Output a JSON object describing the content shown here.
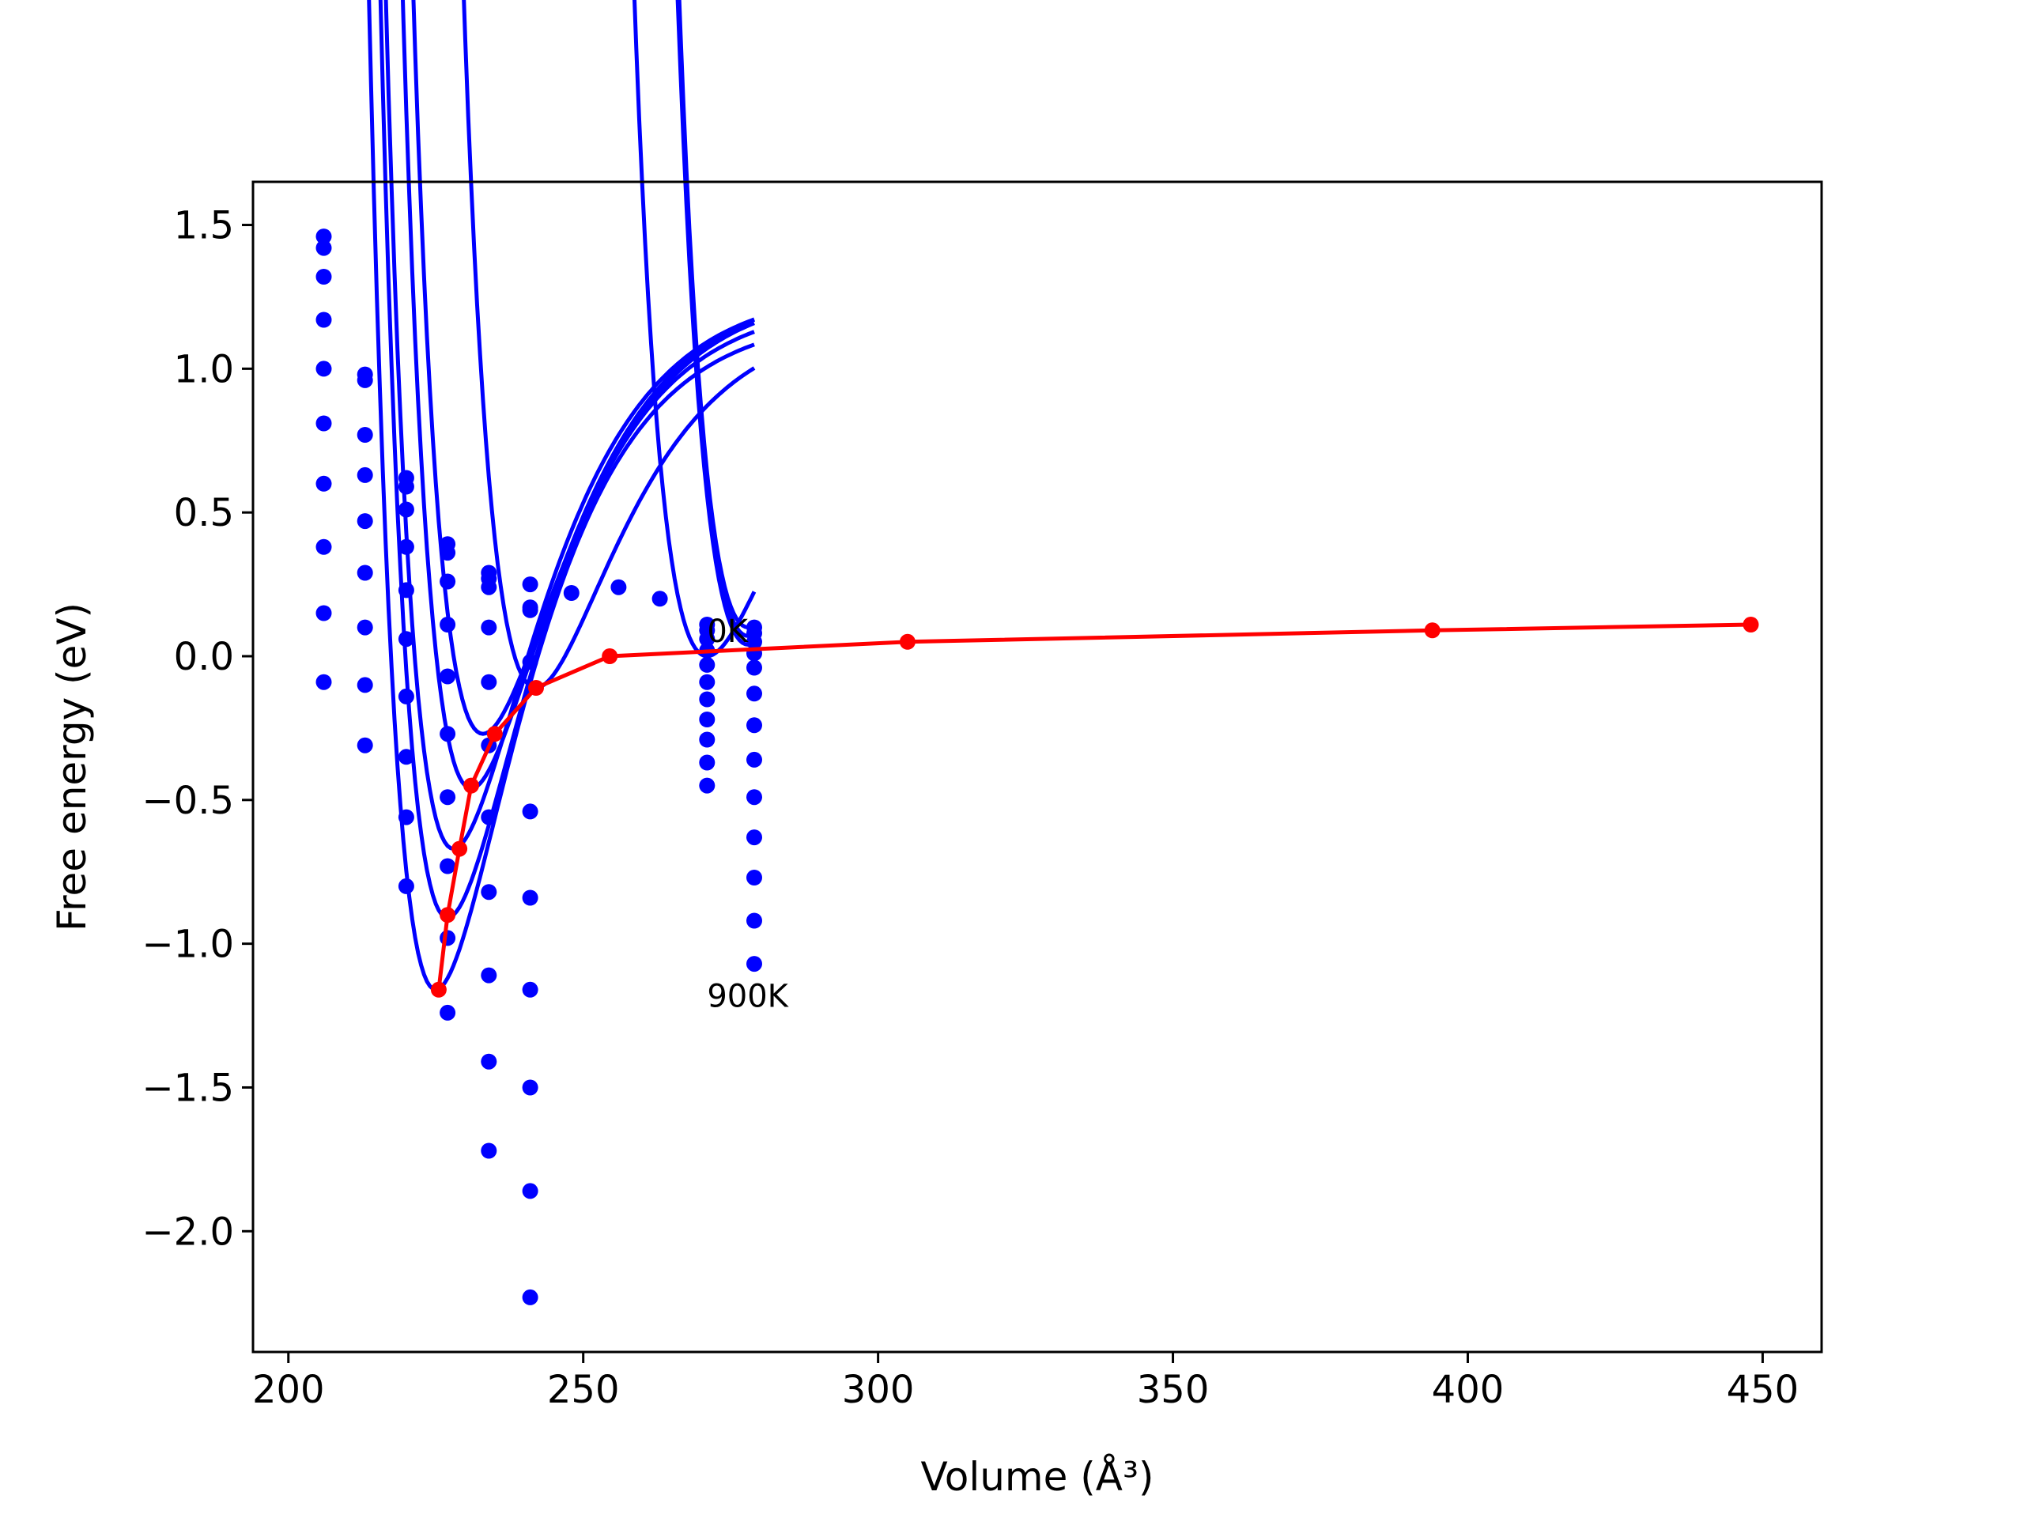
{
  "chart_data": {
    "type": "line",
    "title": "",
    "xlabel": "Volume (Å³)",
    "ylabel": "Free energy (eV)",
    "xlim": [
      194,
      460
    ],
    "ylim": [
      -2.42,
      1.65
    ],
    "xticks": [
      200,
      250,
      300,
      350,
      400,
      450
    ],
    "xtick_labels": [
      "200",
      "250",
      "300",
      "350",
      "400",
      "450"
    ],
    "yticks": [
      1.5,
      1.0,
      0.5,
      0.0,
      -0.5,
      -1.0,
      -1.5,
      -2.0
    ],
    "ytick_labels": [
      "1.5",
      "1.0",
      "0.5",
      "0.0",
      "−0.5",
      "−1.0",
      "−1.5",
      "−2.0"
    ],
    "grid": false,
    "legend": "none",
    "colors": {
      "fits": "#0000ff",
      "points": "#0000ff",
      "minimum_path": "#ff0000"
    },
    "annotations": [
      {
        "text": "0K",
        "x": 271,
        "y": 0.05
      },
      {
        "text": "900K",
        "x": 271,
        "y": -1.22
      }
    ],
    "fit_curves": [
      {
        "v0": 278,
        "e0": 0.1,
        "A": 1.35
      },
      {
        "v0": 278,
        "e0": 0.07,
        "A": 1.33
      },
      {
        "v0": 278,
        "e0": 0.04,
        "A": 1.3
      },
      {
        "v0": 271,
        "e0": 0.0,
        "A": 1.22
      },
      {
        "v0": 242,
        "e0": -0.11,
        "A": 1.3
      },
      {
        "v0": 233,
        "e0": -0.27,
        "A": 1.55
      },
      {
        "v0": 231,
        "e0": -0.46,
        "A": 1.75
      },
      {
        "v0": 228,
        "e0": -0.67,
        "A": 1.95
      },
      {
        "v0": 227,
        "e0": -0.91,
        "A": 2.15
      },
      {
        "v0": 225,
        "e0": -1.16,
        "A": 2.35
      }
    ],
    "points": [
      {
        "x": 206,
        "y": 1.46
      },
      {
        "x": 206,
        "y": 1.42
      },
      {
        "x": 206,
        "y": 1.32
      },
      {
        "x": 206,
        "y": 1.17
      },
      {
        "x": 206,
        "y": 1.0
      },
      {
        "x": 206,
        "y": 0.81
      },
      {
        "x": 206,
        "y": 0.6
      },
      {
        "x": 206,
        "y": 0.38
      },
      {
        "x": 206,
        "y": 0.15
      },
      {
        "x": 206,
        "y": -0.09
      },
      {
        "x": 213,
        "y": 0.98
      },
      {
        "x": 213,
        "y": 0.96
      },
      {
        "x": 213,
        "y": 0.77
      },
      {
        "x": 213,
        "y": 0.63
      },
      {
        "x": 213,
        "y": 0.47
      },
      {
        "x": 213,
        "y": 0.29
      },
      {
        "x": 213,
        "y": 0.1
      },
      {
        "x": 213,
        "y": -0.1
      },
      {
        "x": 213,
        "y": -0.31
      },
      {
        "x": 220,
        "y": 0.62
      },
      {
        "x": 220,
        "y": 0.59
      },
      {
        "x": 220,
        "y": 0.51
      },
      {
        "x": 220,
        "y": 0.38
      },
      {
        "x": 220,
        "y": 0.23
      },
      {
        "x": 220,
        "y": 0.06
      },
      {
        "x": 220,
        "y": -0.14
      },
      {
        "x": 220,
        "y": -0.35
      },
      {
        "x": 220,
        "y": -0.56
      },
      {
        "x": 220,
        "y": -0.8
      },
      {
        "x": 227,
        "y": 0.39
      },
      {
        "x": 227,
        "y": 0.36
      },
      {
        "x": 227,
        "y": 0.26
      },
      {
        "x": 227,
        "y": 0.11
      },
      {
        "x": 227,
        "y": -0.07
      },
      {
        "x": 227,
        "y": -0.27
      },
      {
        "x": 227,
        "y": -0.49
      },
      {
        "x": 227,
        "y": -0.73
      },
      {
        "x": 227,
        "y": -0.98
      },
      {
        "x": 227,
        "y": -1.24
      },
      {
        "x": 234,
        "y": 0.29
      },
      {
        "x": 234,
        "y": 0.27
      },
      {
        "x": 234,
        "y": 0.24
      },
      {
        "x": 234,
        "y": 0.1
      },
      {
        "x": 234,
        "y": -0.09
      },
      {
        "x": 234,
        "y": -0.31
      },
      {
        "x": 234,
        "y": -0.56
      },
      {
        "x": 234,
        "y": -0.82
      },
      {
        "x": 234,
        "y": -1.11
      },
      {
        "x": 234,
        "y": -1.41
      },
      {
        "x": 234,
        "y": -1.72
      },
      {
        "x": 241,
        "y": 0.25
      },
      {
        "x": 241,
        "y": 0.17
      },
      {
        "x": 241,
        "y": 0.16
      },
      {
        "x": 241,
        "y": -0.02
      },
      {
        "x": 241,
        "y": -0.54
      },
      {
        "x": 241,
        "y": -0.84
      },
      {
        "x": 241,
        "y": -1.16
      },
      {
        "x": 241,
        "y": -1.5
      },
      {
        "x": 241,
        "y": -1.86
      },
      {
        "x": 241,
        "y": -2.23
      },
      {
        "x": 248,
        "y": 0.22
      },
      {
        "x": 256,
        "y": 0.24
      },
      {
        "x": 263,
        "y": 0.2
      },
      {
        "x": 271,
        "y": 0.11
      },
      {
        "x": 271,
        "y": 0.09
      },
      {
        "x": 271,
        "y": 0.06
      },
      {
        "x": 271,
        "y": 0.02
      },
      {
        "x": 271,
        "y": -0.03
      },
      {
        "x": 271,
        "y": -0.09
      },
      {
        "x": 271,
        "y": -0.15
      },
      {
        "x": 271,
        "y": -0.22
      },
      {
        "x": 271,
        "y": -0.29
      },
      {
        "x": 271,
        "y": -0.37
      },
      {
        "x": 271,
        "y": -0.45
      },
      {
        "x": 279,
        "y": 0.1
      },
      {
        "x": 279,
        "y": 0.08
      },
      {
        "x": 279,
        "y": 0.05
      },
      {
        "x": 279,
        "y": 0.01
      },
      {
        "x": 279,
        "y": -0.04
      },
      {
        "x": 279,
        "y": -0.13
      },
      {
        "x": 279,
        "y": -0.24
      },
      {
        "x": 279,
        "y": -0.36
      },
      {
        "x": 279,
        "y": -0.49
      },
      {
        "x": 279,
        "y": -0.63
      },
      {
        "x": 279,
        "y": -0.77
      },
      {
        "x": 279,
        "y": -0.92
      },
      {
        "x": 279,
        "y": -1.07
      }
    ],
    "minimum_path": {
      "x": [
        225.5,
        227,
        229,
        231,
        235,
        242,
        254.5,
        305,
        394,
        448
      ],
      "y": [
        -1.16,
        -0.9,
        -0.67,
        -0.45,
        -0.27,
        -0.11,
        0.0,
        0.05,
        0.09,
        0.11
      ]
    }
  }
}
